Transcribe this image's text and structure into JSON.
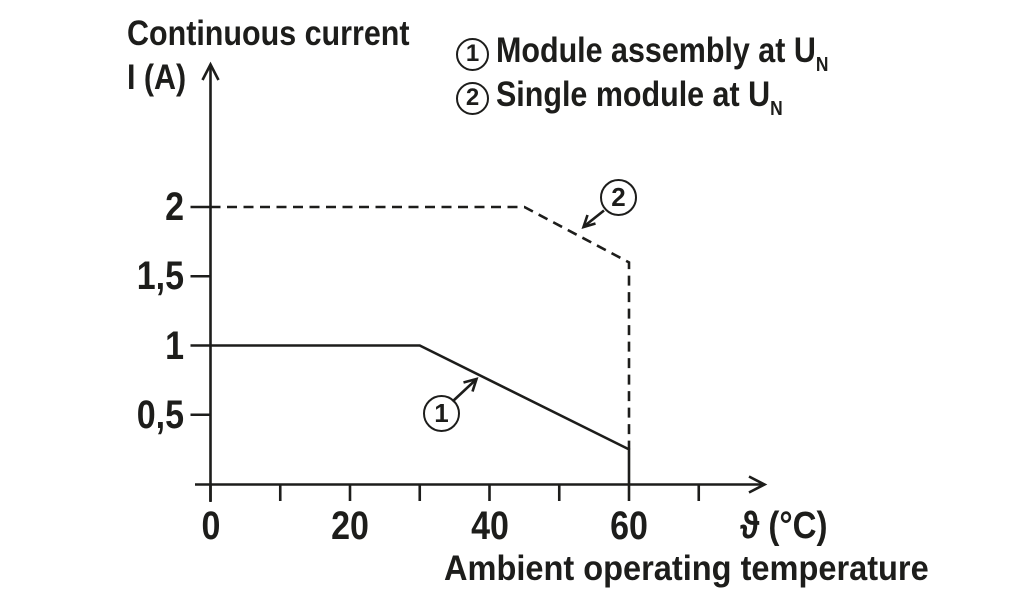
{
  "colors": {
    "ink": "#1d1d1b",
    "background": "#ffffff"
  },
  "chart_data": {
    "type": "line",
    "title": "Continuous current I (A) vs ambient operating temperature",
    "y_axis": {
      "title_line1": "Continuous current",
      "title_line2": "I (A)",
      "ticks": [
        {
          "value": 2,
          "label": "2"
        },
        {
          "value": 1.5,
          "label": "1,5"
        },
        {
          "value": 1,
          "label": "1"
        },
        {
          "value": 0.5,
          "label": "0,5"
        }
      ],
      "range": [
        0,
        2.4
      ]
    },
    "x_axis": {
      "symbol": "ϑ (°C)",
      "caption": "Ambient operating temperature",
      "ticks": [
        {
          "value": 0,
          "label": "0"
        },
        {
          "value": 20,
          "label": "20"
        },
        {
          "value": 40,
          "label": "40"
        },
        {
          "value": 60,
          "label": "60"
        }
      ],
      "minor_ticks": [
        10,
        30,
        50,
        70
      ],
      "range": [
        0,
        79
      ]
    },
    "series": [
      {
        "id": "1",
        "name": "Module assembly at U",
        "name_subscript": "N",
        "style": "solid",
        "points": [
          [
            0,
            1
          ],
          [
            30,
            1
          ],
          [
            60,
            0.25
          ],
          [
            60,
            0
          ]
        ]
      },
      {
        "id": "2",
        "name": "Single module at U",
        "name_subscript": "N",
        "style": "dashed",
        "points": [
          [
            0,
            2
          ],
          [
            45,
            2
          ],
          [
            60,
            1.6
          ],
          [
            60,
            0.25
          ]
        ]
      }
    ],
    "legend_position": "top-right",
    "grid": false
  },
  "legend": {
    "items": [
      {
        "number": "1",
        "label": "Module assembly at U",
        "sub": "N"
      },
      {
        "number": "2",
        "label": "Single module at U",
        "sub": "N"
      }
    ]
  }
}
